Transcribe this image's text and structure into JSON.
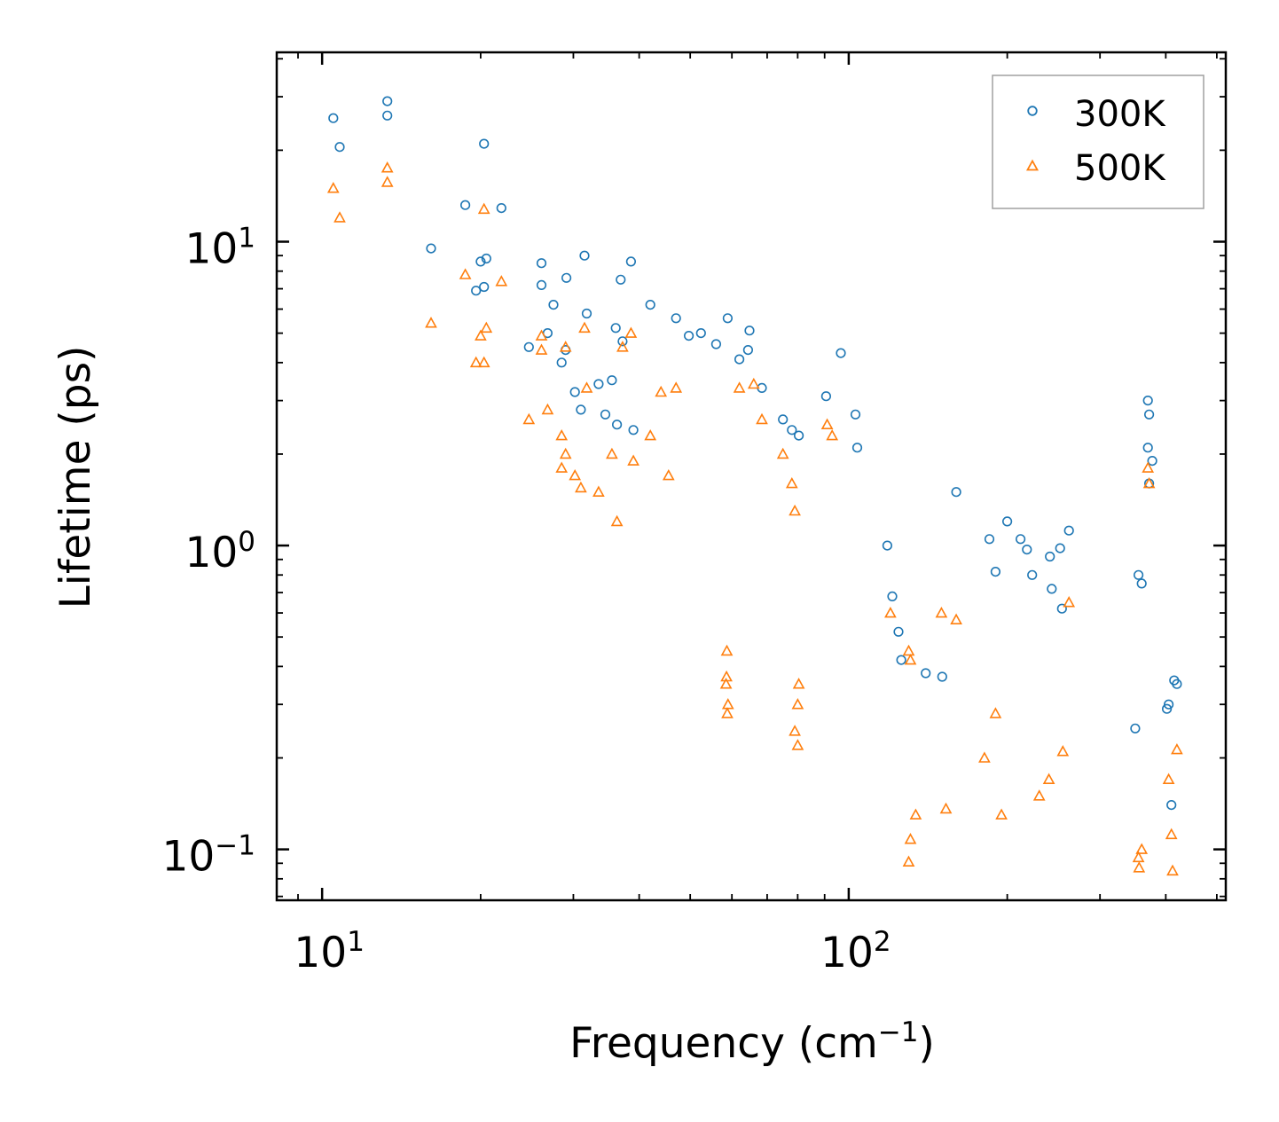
{
  "chart_data": {
    "type": "scatter",
    "xscale": "log",
    "yscale": "log",
    "xlim": [
      8.2,
      520
    ],
    "ylim": [
      0.068,
      42
    ],
    "xlabel": "Frequency (cm",
    "xlabel_sup": "−1",
    "xlabel_end": ")",
    "ylabel": "Lifetime (ps)",
    "x_ticks": [
      {
        "value": 10,
        "base": "10",
        "exp": "1"
      },
      {
        "value": 100,
        "base": "10",
        "exp": "2"
      }
    ],
    "y_ticks": [
      {
        "value": 0.1,
        "base": "10",
        "exp": "−1"
      },
      {
        "value": 1,
        "base": "10",
        "exp": "0"
      },
      {
        "value": 10,
        "base": "10",
        "exp": "1"
      }
    ],
    "legend": {
      "position": "top-right"
    },
    "series": [
      {
        "name": "300K",
        "color": "#1f77b4",
        "marker": "circle",
        "points": [
          [
            10.5,
            25.5
          ],
          [
            10.8,
            20.5
          ],
          [
            13.3,
            29.0
          ],
          [
            13.3,
            26.0
          ],
          [
            20.3,
            21.0
          ],
          [
            16.1,
            9.5
          ],
          [
            18.7,
            13.2
          ],
          [
            20.0,
            8.6
          ],
          [
            20.5,
            8.8
          ],
          [
            21.9,
            12.9
          ],
          [
            19.6,
            6.9
          ],
          [
            20.3,
            7.1
          ],
          [
            26.1,
            8.5
          ],
          [
            26.1,
            7.2
          ],
          [
            29.1,
            7.6
          ],
          [
            31.5,
            9.0
          ],
          [
            36.9,
            7.5
          ],
          [
            38.6,
            8.6
          ],
          [
            27.5,
            6.2
          ],
          [
            31.8,
            5.8
          ],
          [
            36.1,
            5.2
          ],
          [
            42.0,
            6.2
          ],
          [
            47.0,
            5.6
          ],
          [
            24.7,
            4.5
          ],
          [
            26.8,
            5.0
          ],
          [
            29.0,
            4.4
          ],
          [
            28.5,
            4.0
          ],
          [
            33.5,
            3.4
          ],
          [
            35.5,
            3.5
          ],
          [
            37.2,
            4.7
          ],
          [
            52.4,
            5.0
          ],
          [
            58.9,
            5.6
          ],
          [
            49.7,
            4.9
          ],
          [
            56.0,
            4.6
          ],
          [
            30.2,
            3.2
          ],
          [
            31.0,
            2.8
          ],
          [
            34.5,
            2.7
          ],
          [
            36.3,
            2.5
          ],
          [
            39.0,
            2.4
          ],
          [
            64.8,
            5.1
          ],
          [
            64.4,
            4.4
          ],
          [
            62.0,
            4.1
          ],
          [
            68.4,
            3.3
          ],
          [
            75.0,
            2.6
          ],
          [
            78.0,
            2.4
          ],
          [
            80.4,
            2.3
          ],
          [
            103.0,
            2.7
          ],
          [
            103.8,
            2.1
          ],
          [
            96.6,
            4.3
          ],
          [
            90.6,
            3.1
          ],
          [
            118.4,
            1.0
          ],
          [
            121.0,
            0.68
          ],
          [
            124.3,
            0.52
          ],
          [
            125.8,
            0.42
          ],
          [
            140.0,
            0.38
          ],
          [
            150.5,
            0.37
          ],
          [
            160.0,
            1.5
          ],
          [
            185.0,
            1.05
          ],
          [
            190.0,
            0.82
          ],
          [
            200.0,
            1.2
          ],
          [
            212.0,
            1.05
          ],
          [
            218.0,
            0.97
          ],
          [
            223.0,
            0.8
          ],
          [
            241.0,
            0.92
          ],
          [
            252.0,
            0.98
          ],
          [
            262.0,
            1.12
          ],
          [
            243.0,
            0.72
          ],
          [
            254.0,
            0.62
          ],
          [
            370.0,
            3.0
          ],
          [
            372.0,
            2.7
          ],
          [
            370.0,
            2.1
          ],
          [
            377.0,
            1.9
          ],
          [
            372.0,
            1.6
          ],
          [
            355.0,
            0.8
          ],
          [
            360.0,
            0.75
          ],
          [
            350.0,
            0.25
          ],
          [
            405.0,
            0.3
          ],
          [
            415.0,
            0.36
          ],
          [
            420.0,
            0.35
          ],
          [
            402.0,
            0.29
          ],
          [
            410.0,
            0.14
          ]
        ]
      },
      {
        "name": "500K",
        "color": "#ff7f0e",
        "marker": "triangle",
        "points": [
          [
            10.5,
            15.0
          ],
          [
            10.8,
            12.0
          ],
          [
            13.3,
            17.5
          ],
          [
            13.3,
            15.7
          ],
          [
            20.3,
            12.8
          ],
          [
            16.1,
            5.4
          ],
          [
            18.7,
            7.8
          ],
          [
            20.0,
            4.9
          ],
          [
            20.5,
            5.2
          ],
          [
            21.9,
            7.4
          ],
          [
            19.6,
            4.0
          ],
          [
            20.3,
            4.0
          ],
          [
            24.7,
            2.6
          ],
          [
            26.1,
            4.9
          ],
          [
            26.1,
            4.4
          ],
          [
            26.8,
            2.8
          ],
          [
            29.0,
            4.5
          ],
          [
            31.5,
            5.2
          ],
          [
            31.8,
            3.3
          ],
          [
            28.5,
            2.3
          ],
          [
            29.0,
            2.0
          ],
          [
            28.5,
            1.8
          ],
          [
            30.2,
            1.7
          ],
          [
            31.0,
            1.55
          ],
          [
            33.5,
            1.5
          ],
          [
            35.5,
            2.0
          ],
          [
            37.2,
            4.5
          ],
          [
            38.6,
            5.0
          ],
          [
            36.3,
            1.2
          ],
          [
            39.0,
            1.9
          ],
          [
            42.0,
            2.3
          ],
          [
            44.0,
            3.2
          ],
          [
            45.5,
            1.7
          ],
          [
            47.0,
            3.3
          ],
          [
            62.0,
            3.3
          ],
          [
            66.0,
            3.4
          ],
          [
            68.4,
            2.6
          ],
          [
            75.0,
            2.0
          ],
          [
            78.0,
            1.6
          ],
          [
            79.0,
            1.3
          ],
          [
            58.7,
            0.45
          ],
          [
            58.6,
            0.37
          ],
          [
            58.5,
            0.35
          ],
          [
            59.0,
            0.3
          ],
          [
            58.8,
            0.28
          ],
          [
            80.4,
            0.35
          ],
          [
            80.0,
            0.3
          ],
          [
            79.0,
            0.245
          ],
          [
            80.0,
            0.22
          ],
          [
            91.0,
            2.5
          ],
          [
            93.0,
            2.3
          ],
          [
            120.0,
            0.6
          ],
          [
            130.0,
            0.45
          ],
          [
            131.0,
            0.42
          ],
          [
            131.0,
            0.108
          ],
          [
            130.0,
            0.091
          ],
          [
            134.0,
            0.13
          ],
          [
            153.0,
            0.136
          ],
          [
            150.0,
            0.6
          ],
          [
            160.0,
            0.57
          ],
          [
            181.0,
            0.2
          ],
          [
            190.0,
            0.28
          ],
          [
            195.0,
            0.13
          ],
          [
            230.0,
            0.15
          ],
          [
            240.0,
            0.17
          ],
          [
            255.0,
            0.21
          ],
          [
            262.0,
            0.65
          ],
          [
            370.0,
            1.8
          ],
          [
            372.0,
            1.6
          ],
          [
            355.0,
            0.094
          ],
          [
            356.0,
            0.087
          ],
          [
            360.0,
            0.1
          ],
          [
            405.0,
            0.17
          ],
          [
            410.0,
            0.112
          ],
          [
            420.0,
            0.213
          ],
          [
            412.0,
            0.085
          ]
        ]
      }
    ]
  }
}
